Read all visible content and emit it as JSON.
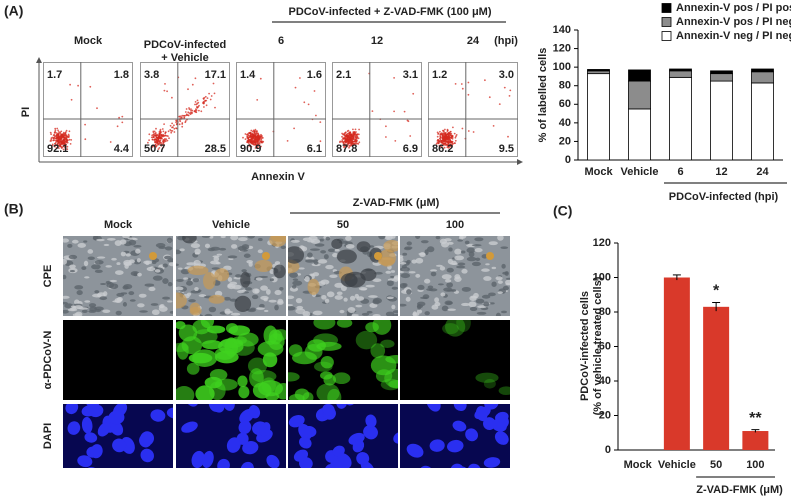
{
  "flow_cytometry": {
    "panel_label": "(A)",
    "y_label": "PI",
    "x_label": "Annexin V",
    "group_header": "PDCoV-infected + Z-VAD-FMK (100 μM)",
    "time_unit": "(hpi)",
    "plots": [
      {
        "label": [
          "Mock"
        ],
        "quadrants": [
          "1.7",
          "1.8",
          "92.1",
          "4.4"
        ]
      },
      {
        "label": [
          "PDCoV-infected",
          "+ Vehicle"
        ],
        "quadrants": [
          "3.8",
          "17.1",
          "50.7",
          "28.5"
        ]
      },
      {
        "label": [
          "6"
        ],
        "quadrants": [
          "1.4",
          "1.6",
          "90.9",
          "6.1"
        ]
      },
      {
        "label": [
          "12"
        ],
        "quadrants": [
          "2.1",
          "3.1",
          "87.8",
          "6.9"
        ]
      },
      {
        "label": [
          "24"
        ],
        "quadrants": [
          "1.2",
          "3.0",
          "86.2",
          "9.5"
        ]
      }
    ]
  },
  "microscopy": {
    "panel_label": "(B)",
    "group_header": "Z-VAD-FMK (μM)",
    "columns": [
      "Mock",
      "Vehicle",
      "50",
      "100"
    ],
    "rows": [
      "CPE",
      "α-PDCoV-N",
      "DAPI"
    ]
  },
  "chart_data": [
    {
      "type": "stacked_bar",
      "ylabel": "% of labelled cells",
      "xlabel": "PDCoV-infected (hpi)",
      "categories": [
        "Mock",
        "Vehicle",
        "6",
        "12",
        "24"
      ],
      "series": [
        {
          "name": "Annexin-V neg / PI neg",
          "color": "#ffffff",
          "values": [
            93,
            55,
            89,
            85,
            83
          ]
        },
        {
          "name": "Annexin-V pos / PI neg",
          "color": "#8c8c8c",
          "values": [
            3,
            30,
            7,
            8,
            12
          ]
        },
        {
          "name": "Annexin-V pos / PI pos",
          "color": "#000000",
          "values": [
            1.5,
            12,
            2,
            3,
            3
          ]
        }
      ],
      "ylim": [
        0,
        140
      ],
      "yticks": [
        0,
        20,
        40,
        60,
        80,
        100,
        120,
        140
      ],
      "legend": "top-right"
    },
    {
      "type": "bar",
      "panel_label": "(C)",
      "ylabel": [
        "PDCoV-infected cells",
        "(% of vehicle-treated cells)"
      ],
      "xlabel": "Z-VAD-FMK (μM)",
      "categories": [
        "Mock",
        "Vehicle",
        "50",
        "100"
      ],
      "values": [
        0,
        100,
        83,
        11
      ],
      "errors": [
        0,
        1.5,
        2.5,
        0.8
      ],
      "color": "#d9392a",
      "ylim": [
        0,
        120
      ],
      "yticks": [
        0,
        20,
        40,
        60,
        80,
        100,
        120
      ],
      "annotations": [
        {
          "category": "50",
          "text": "*"
        },
        {
          "category": "100",
          "text": "**"
        }
      ]
    }
  ]
}
